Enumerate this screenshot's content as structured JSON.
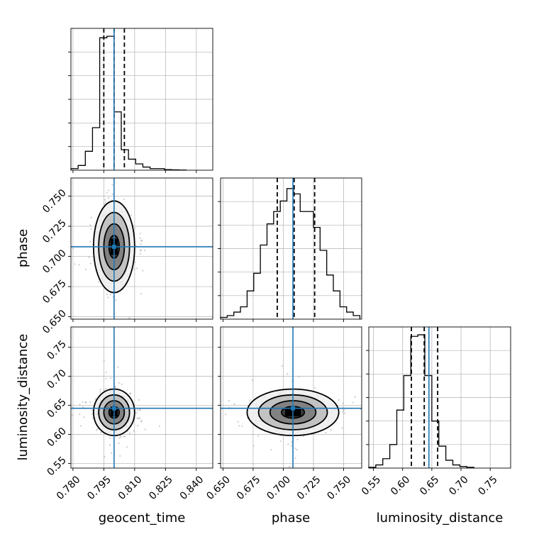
{
  "chart_data": {
    "type": "corner",
    "parameters": [
      "geocent_time",
      "phase",
      "luminosity_distance"
    ],
    "truths": {
      "geocent_time": 0.8,
      "phase": 0.708,
      "luminosity_distance": 0.645
    },
    "quantiles": {
      "geocent_time": [
        0.795,
        0.8,
        0.805
      ],
      "phase": [
        0.695,
        0.709,
        0.726
      ],
      "luminosity_distance": [
        0.615,
        0.637,
        0.66
      ]
    },
    "ranges": {
      "geocent_time": [
        0.779,
        0.848
      ],
      "phase": [
        0.648,
        0.765
      ],
      "luminosity_distance": [
        0.542,
        0.785
      ]
    },
    "ticks": {
      "geocent_time": [
        "0.780",
        "0.795",
        "0.810",
        "0.825",
        "0.840"
      ],
      "phase": [
        "0.650",
        "0.675",
        "0.700",
        "0.725",
        "0.750"
      ],
      "luminosity_distance": [
        "0.55",
        "0.60",
        "0.65",
        "0.70",
        "0.75"
      ]
    },
    "histograms": {
      "geocent_time": {
        "edges": [
          0.779,
          0.7825,
          0.786,
          0.7895,
          0.793,
          0.7965,
          0.8,
          0.8035,
          0.807,
          0.8105,
          0.814,
          0.8175,
          0.821,
          0.8245,
          0.828,
          0.8315,
          0.835
        ],
        "counts": [
          1,
          3,
          12,
          27,
          84,
          85,
          37,
          13,
          7,
          4,
          2,
          1,
          1,
          0.4,
          0.2,
          0.1
        ]
      },
      "phase": {
        "edges": [
          0.648,
          0.6535,
          0.659,
          0.6645,
          0.67,
          0.6755,
          0.681,
          0.6865,
          0.692,
          0.6975,
          0.703,
          0.7085,
          0.714,
          0.7195,
          0.725,
          0.7305,
          0.736,
          0.7415,
          0.747,
          0.7525,
          0.758,
          0.7635
        ],
        "counts": [
          1,
          2,
          4,
          7,
          16,
          26,
          42,
          54,
          61,
          67,
          74,
          71,
          61,
          61,
          52,
          39,
          25,
          16,
          7,
          4,
          2
        ]
      },
      "luminosity_distance": {
        "edges": [
          0.542,
          0.554,
          0.566,
          0.578,
          0.59,
          0.602,
          0.614,
          0.626,
          0.638,
          0.65,
          0.662,
          0.674,
          0.686,
          0.698,
          0.71,
          0.722
        ],
        "counts": [
          0.5,
          2,
          6,
          15,
          37,
          59,
          84,
          85,
          59,
          30,
          14,
          5,
          2,
          1,
          0.5
        ]
      }
    },
    "contour_levels": [
      0.5,
      1.0,
      1.5,
      2.0
    ],
    "ylim_hist": {
      "geocent_time": 90,
      "phase": 80,
      "luminosity_distance": 90
    }
  }
}
